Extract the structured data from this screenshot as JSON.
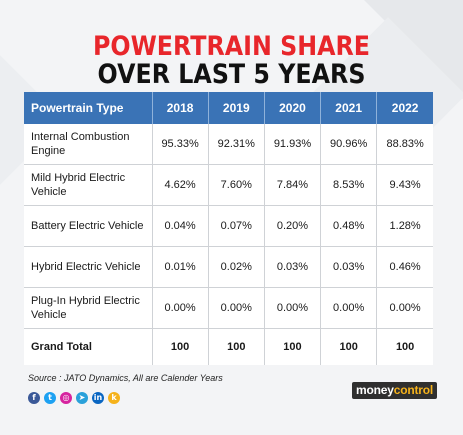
{
  "title_line1": "POWERTRAIN SHARE",
  "title_line2": "OVER LAST 5 YEARS",
  "chart_data": {
    "type": "table",
    "columns": [
      "Powertrain Type",
      "2018",
      "2019",
      "2020",
      "2021",
      "2022"
    ],
    "rows": [
      {
        "type": "Internal Combustion Engine",
        "values": [
          "95.33%",
          "92.31%",
          "91.93%",
          "90.96%",
          "88.83%"
        ]
      },
      {
        "type": "Mild Hybrid Electric Vehicle",
        "values": [
          "4.62%",
          "7.60%",
          "7.84%",
          "8.53%",
          "9.43%"
        ]
      },
      {
        "type": "Battery Electric Vehicle",
        "values": [
          "0.04%",
          "0.07%",
          "0.20%",
          "0.48%",
          "1.28%"
        ]
      },
      {
        "type": "Hybrid Electric Vehicle",
        "values": [
          "0.01%",
          "0.02%",
          "0.03%",
          "0.03%",
          "0.46%"
        ]
      },
      {
        "type": "Plug-In Hybrid Electric Vehicle",
        "values": [
          "0.00%",
          "0.00%",
          "0.00%",
          "0.00%",
          "0.00%"
        ]
      },
      {
        "type": "Grand Total",
        "values": [
          "100",
          "100",
          "100",
          "100",
          "100"
        ]
      }
    ]
  },
  "source": "Source : JATO Dynamics, All are Calender Years",
  "social_icons": [
    {
      "name": "facebook-icon",
      "glyph": "f",
      "color": "#3b5998"
    },
    {
      "name": "twitter-icon",
      "glyph": "t",
      "color": "#1da1f2"
    },
    {
      "name": "instagram-icon",
      "glyph": "◎",
      "color": "#d6249f"
    },
    {
      "name": "telegram-icon",
      "glyph": "➤",
      "color": "#2aa1da"
    },
    {
      "name": "linkedin-icon",
      "glyph": "in",
      "color": "#0a66c2"
    },
    {
      "name": "koo-icon",
      "glyph": "k",
      "color": "#f5b21b"
    }
  ],
  "logo": {
    "part1": "money",
    "part2": "control"
  },
  "colors": {
    "title_red": "#e8262b",
    "header_blue": "#3a73b6"
  }
}
